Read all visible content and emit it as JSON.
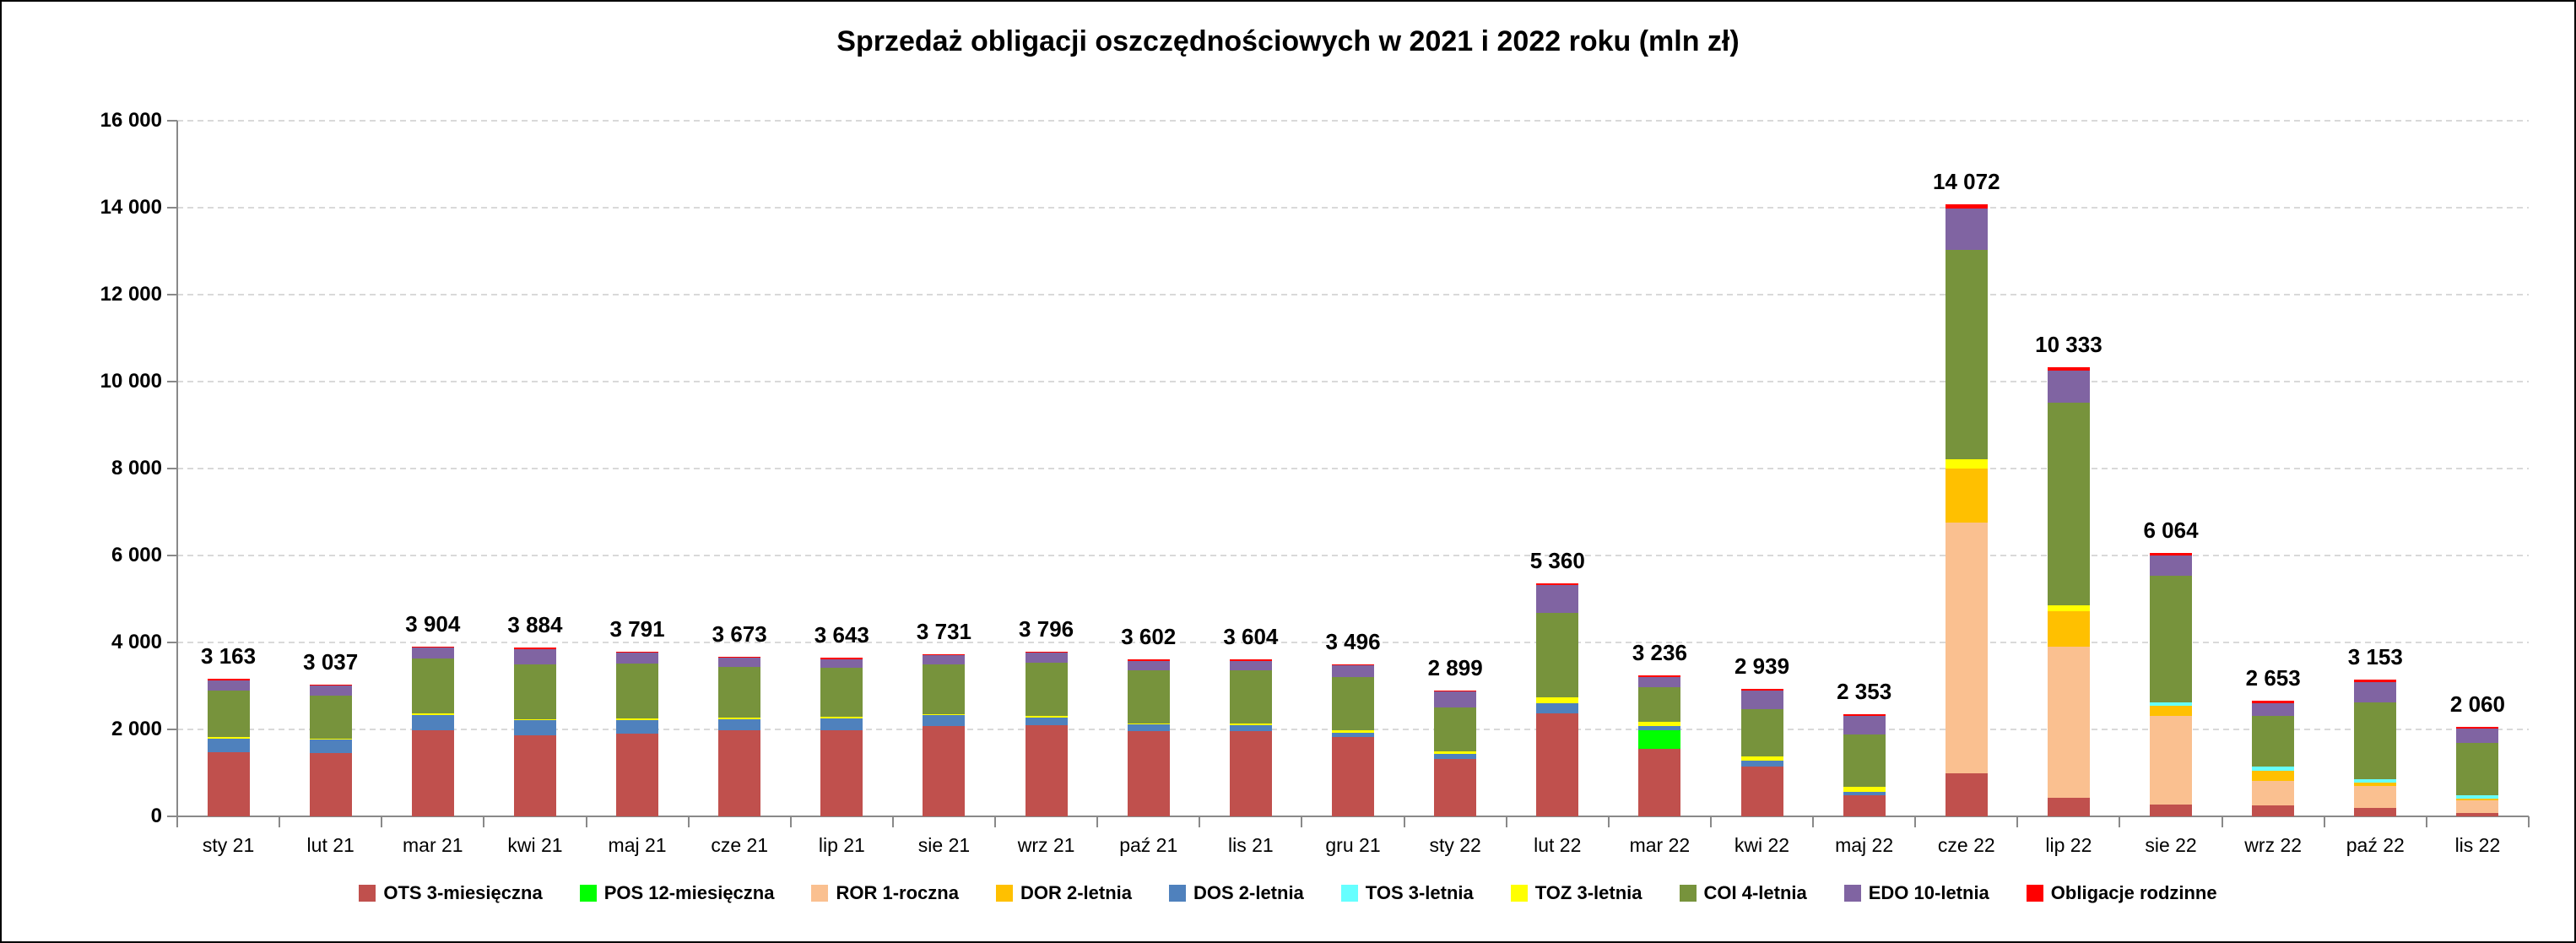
{
  "title": "Sprzedaż obligacji oszczędnościowych w 2021 i 2022 roku (mln zł)",
  "chart_data": {
    "type": "bar",
    "stacked": true,
    "title": "Sprzedaż obligacji oszczędnościowych w 2021 i 2022 roku (mln zł)",
    "ylim": [
      0,
      16000
    ],
    "grid": "horizontal-dashed",
    "legend_position": "bottom",
    "y_ticks": [
      "16 000",
      "14 000",
      "12 000",
      "10 000",
      "8 000",
      "6 000",
      "4 000",
      "2 000",
      "0"
    ],
    "categories": [
      "sty 21",
      "lut 21",
      "mar 21",
      "kwi 21",
      "maj 21",
      "cze 21",
      "lip 21",
      "sie 21",
      "wrz 21",
      "paź 21",
      "lis 21",
      "gru 21",
      "sty 22",
      "lut 22",
      "mar 22",
      "kwi 22",
      "maj 22",
      "cze 22",
      "lip 22",
      "sie 22",
      "wrz 22",
      "paź 22",
      "lis 22"
    ],
    "totals": [
      3163,
      3037,
      3904,
      3884,
      3791,
      3673,
      3643,
      3731,
      3796,
      3602,
      3604,
      3496,
      2899,
      5360,
      3236,
      2939,
      2353,
      14072,
      10333,
      6064,
      2653,
      3153,
      2060
    ],
    "bar_labels": [
      "3 163",
      "3 037",
      "3 904",
      "3 884",
      "3 791",
      "3 673",
      "3 643",
      "3 731",
      "3 796",
      "3 602",
      "3 604",
      "3 496",
      "2 899",
      "5 360",
      "3 236",
      "2 939",
      "2 353",
      "14 072",
      "10 333",
      "6 064",
      "2 653",
      "3 153",
      "2 060"
    ],
    "series": [
      {
        "name": "OTS 3-miesięczna",
        "color": "#C0504D",
        "values": [
          1480,
          1460,
          1990,
          1870,
          1910,
          1975,
          1980,
          2070,
          2090,
          1965,
          1960,
          1820,
          1320,
          2370,
          1550,
          1150,
          490,
          1000,
          420,
          270,
          250,
          195,
          85
        ]
      },
      {
        "name": "POS 12-miesięczna",
        "color": "#00FF00",
        "values": [
          0,
          0,
          0,
          0,
          0,
          0,
          0,
          0,
          0,
          0,
          0,
          0,
          0,
          0,
          440,
          0,
          0,
          0,
          0,
          0,
          0,
          0,
          0
        ]
      },
      {
        "name": "ROR 1-roczna",
        "color": "#FAC090",
        "values": [
          0,
          0,
          0,
          0,
          0,
          0,
          0,
          0,
          0,
          0,
          0,
          0,
          0,
          0,
          0,
          0,
          0,
          5750,
          3490,
          2050,
          560,
          500,
          285
        ]
      },
      {
        "name": "DOR 2-letnia",
        "color": "#FFC000",
        "values": [
          0,
          0,
          0,
          0,
          0,
          0,
          0,
          0,
          0,
          0,
          0,
          0,
          0,
          0,
          0,
          0,
          0,
          1250,
          810,
          230,
          230,
          80,
          40
        ]
      },
      {
        "name": "DOS 2-letnia",
        "color": "#4F81BD",
        "values": [
          310,
          300,
          335,
          335,
          310,
          270,
          290,
          260,
          185,
          150,
          135,
          100,
          120,
          240,
          90,
          125,
          80,
          0,
          0,
          0,
          0,
          0,
          0
        ]
      },
      {
        "name": "TOS 3-letnia",
        "color": "#66FFFF",
        "values": [
          0,
          0,
          0,
          0,
          0,
          0,
          0,
          0,
          0,
          0,
          0,
          0,
          0,
          0,
          0,
          0,
          0,
          0,
          0,
          80,
          110,
          85,
          80
        ]
      },
      {
        "name": "TOZ 3-letnia",
        "color": "#FFFF00",
        "values": [
          40,
          35,
          40,
          30,
          30,
          25,
          20,
          20,
          35,
          30,
          35,
          55,
          50,
          130,
          95,
          105,
          115,
          220,
          140,
          0,
          0,
          0,
          0
        ]
      },
      {
        "name": "COI 4-letnia",
        "color": "#77933C",
        "values": [
          1060,
          975,
          1270,
          1260,
          1270,
          1160,
          1120,
          1150,
          1215,
          1215,
          1230,
          1235,
          1010,
          1930,
          800,
          1090,
          1190,
          4800,
          4650,
          2900,
          1170,
          1755,
          1190
        ]
      },
      {
        "name": "EDO 10-letnia",
        "color": "#8064A2",
        "values": [
          248,
          240,
          244,
          359,
          246,
          220,
          210,
          210,
          245,
          220,
          225,
          265,
          379,
          650,
          230,
          419,
          430,
          952,
          743,
          470,
          276,
          481,
          330
        ]
      },
      {
        "name": "Obligacje rodzinne",
        "color": "#FF0000",
        "values": [
          25,
          27,
          25,
          30,
          25,
          23,
          23,
          21,
          26,
          22,
          19,
          21,
          20,
          40,
          31,
          50,
          48,
          100,
          80,
          64,
          57,
          57,
          50
        ]
      }
    ]
  }
}
